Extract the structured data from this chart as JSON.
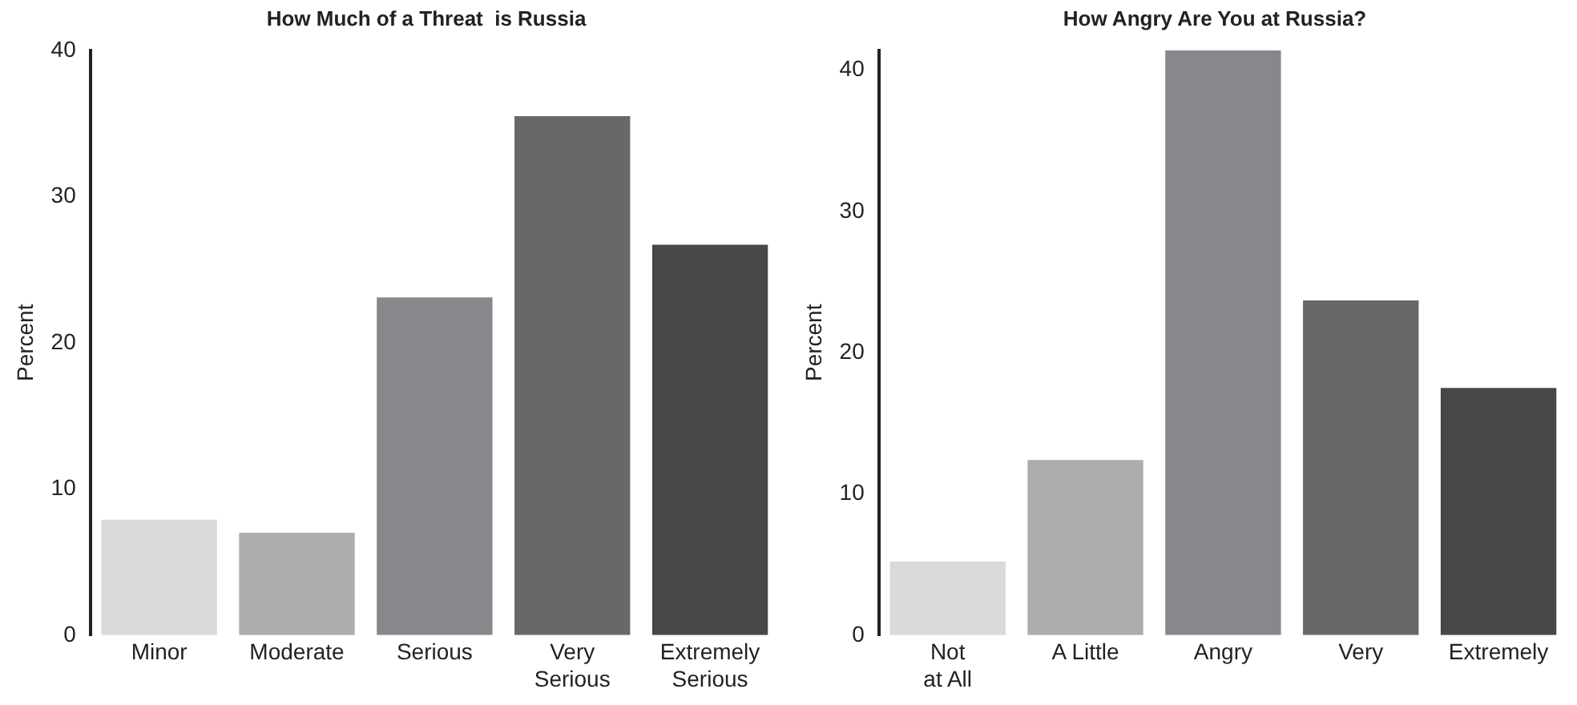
{
  "chart_data": [
    {
      "type": "bar",
      "title": "How Much of a Threat  is Russia",
      "ylabel": "Percent",
      "categories": [
        "Minor",
        "Moderate",
        "Serious",
        "Very\nSerious",
        "Extremely\nSerious"
      ],
      "values": [
        7.9,
        7.0,
        23.1,
        35.5,
        26.7
      ],
      "colors": [
        "#d9dadc",
        "#acadaf",
        "#87888b",
        "#67686a",
        "#474749"
      ],
      "ylim": [
        0,
        40
      ],
      "yticks": [
        0,
        10,
        20,
        30,
        40
      ],
      "grid": false,
      "legend": false
    },
    {
      "type": "bar",
      "title": "How Angry Are You at Russia?",
      "ylabel": "Percent",
      "categories": [
        "Not\nat All",
        "A Little",
        "Angry",
        "Very",
        "Extremely"
      ],
      "values": [
        5.2,
        12.4,
        41.4,
        23.7,
        17.5
      ],
      "colors": [
        "#d9dadc",
        "#acadaf",
        "#87888b",
        "#67686a",
        "#474749"
      ],
      "ylim": [
        0,
        41.4
      ],
      "yticks": [
        0,
        10,
        20,
        30,
        40
      ],
      "grid": false,
      "legend": false
    }
  ]
}
